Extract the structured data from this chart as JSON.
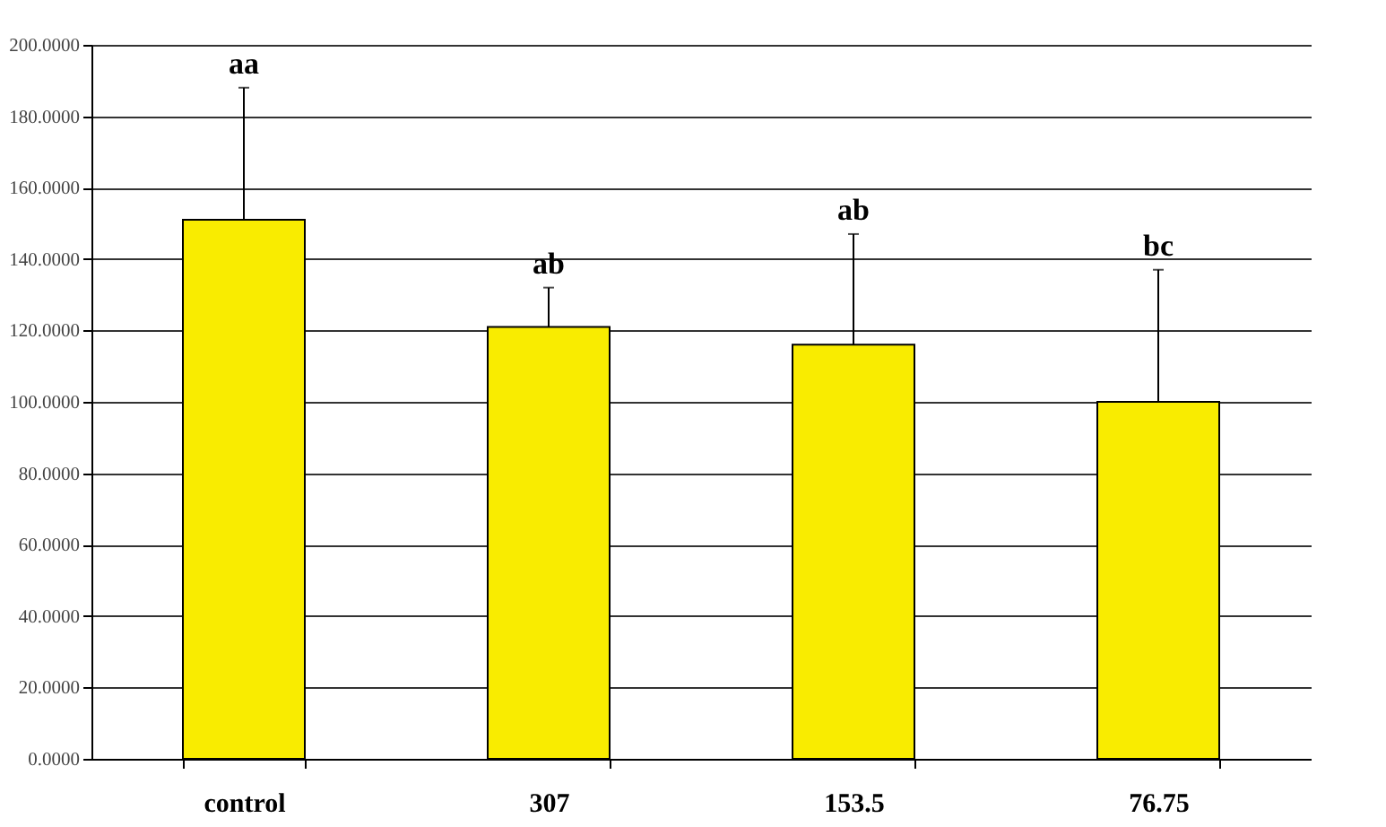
{
  "chart_data": {
    "type": "bar",
    "categories": [
      "control",
      "307",
      "153.5",
      "76.75"
    ],
    "values": [
      151,
      121,
      116,
      100
    ],
    "errors": [
      [
        151,
        188
      ],
      [
        121,
        132
      ],
      [
        116,
        147
      ],
      [
        100,
        137
      ]
    ],
    "color": "#f9ec00",
    "ylim": [
      0,
      200
    ],
    "yticks": [
      {
        "value": 0,
        "label": "0.0000"
      },
      {
        "value": 20,
        "label": "20.0000"
      },
      {
        "value": 40,
        "label": "40.0000"
      },
      {
        "value": 60,
        "label": "60.0000"
      },
      {
        "value": 80,
        "label": "80.0000"
      },
      {
        "value": 100,
        "label": "100.0000"
      },
      {
        "value": 120,
        "label": "120.0000"
      },
      {
        "value": 140,
        "label": "140.0000"
      },
      {
        "value": 160,
        "label": "160.0000"
      },
      {
        "value": 180,
        "label": "180.0000"
      },
      {
        "value": 200,
        "label": "200.0000"
      }
    ],
    "annotations": [
      {
        "text": "aa",
        "x": "control",
        "y": 188
      },
      {
        "text": "ab",
        "x": "307",
        "y": 132
      },
      {
        "text": "ab",
        "x": "153.5",
        "y": 147
      },
      {
        "text": "bc",
        "x": "76.75",
        "y": 137
      }
    ],
    "grid": "y"
  }
}
